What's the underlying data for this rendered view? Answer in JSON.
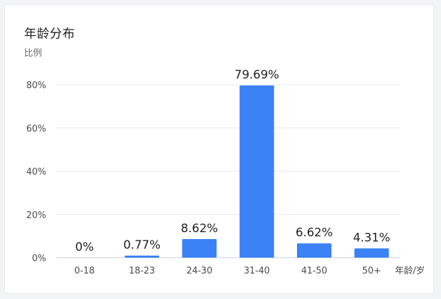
{
  "card": {
    "title": "年龄分布"
  },
  "colors": {
    "bar": "#3b82f6",
    "grid": "#e6e9ef",
    "axis": "#c9ced8"
  },
  "chart_data": {
    "type": "bar",
    "title": "年龄分布",
    "ylabel": "比例",
    "xlabel": "年龄/岁",
    "categories": [
      "0-18",
      "18-23",
      "24-30",
      "31-40",
      "41-50",
      "50+"
    ],
    "values": [
      0,
      0.77,
      8.62,
      79.69,
      6.62,
      4.31
    ],
    "value_labels": [
      "0%",
      "0.77%",
      "8.62%",
      "79.69%",
      "6.62%",
      "4.31%"
    ],
    "ylim": [
      0,
      80
    ],
    "yticks": [
      0,
      20,
      40,
      60,
      80
    ],
    "ytick_labels": [
      "0%",
      "20%",
      "40%",
      "60%",
      "80%"
    ],
    "grid": true,
    "legend": "none"
  }
}
